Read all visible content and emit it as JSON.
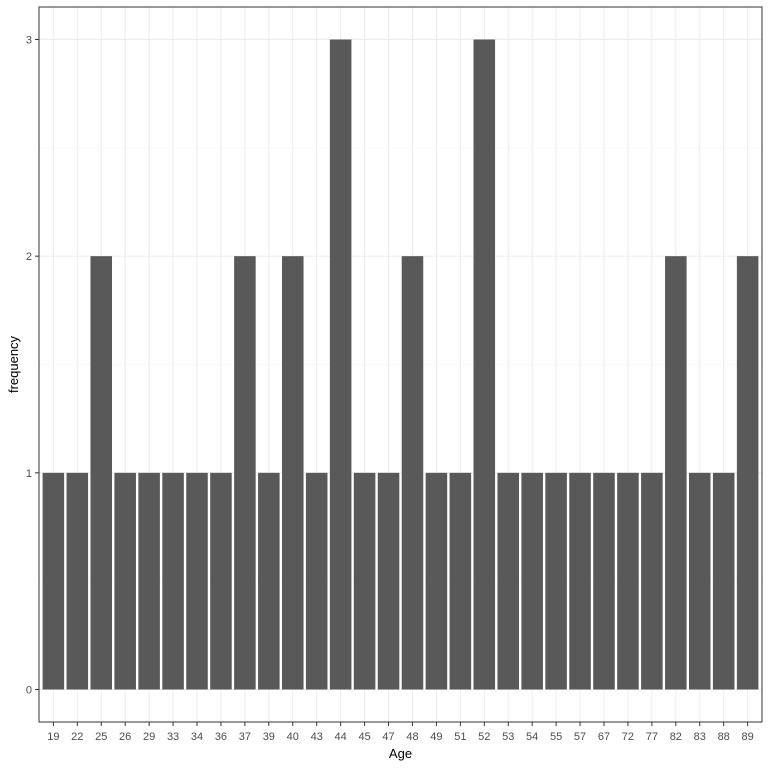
{
  "chart_data": {
    "type": "bar",
    "xlabel": "Age",
    "ylabel": "frequency",
    "categories": [
      "19",
      "22",
      "25",
      "26",
      "29",
      "33",
      "34",
      "36",
      "37",
      "39",
      "40",
      "43",
      "44",
      "45",
      "47",
      "48",
      "49",
      "51",
      "52",
      "53",
      "54",
      "55",
      "57",
      "67",
      "72",
      "77",
      "82",
      "83",
      "88",
      "89"
    ],
    "values": [
      1,
      1,
      2,
      1,
      1,
      1,
      1,
      1,
      2,
      1,
      2,
      1,
      3,
      1,
      1,
      2,
      1,
      1,
      3,
      1,
      1,
      1,
      1,
      1,
      1,
      1,
      2,
      1,
      1,
      2
    ],
    "yticks": [
      0,
      1,
      2,
      3
    ],
    "ylim": [
      -0.15,
      3.15
    ],
    "grid": true,
    "colors": {
      "bar": "#595959",
      "grid": "#ebebeb",
      "panel_border": "#333333"
    }
  }
}
